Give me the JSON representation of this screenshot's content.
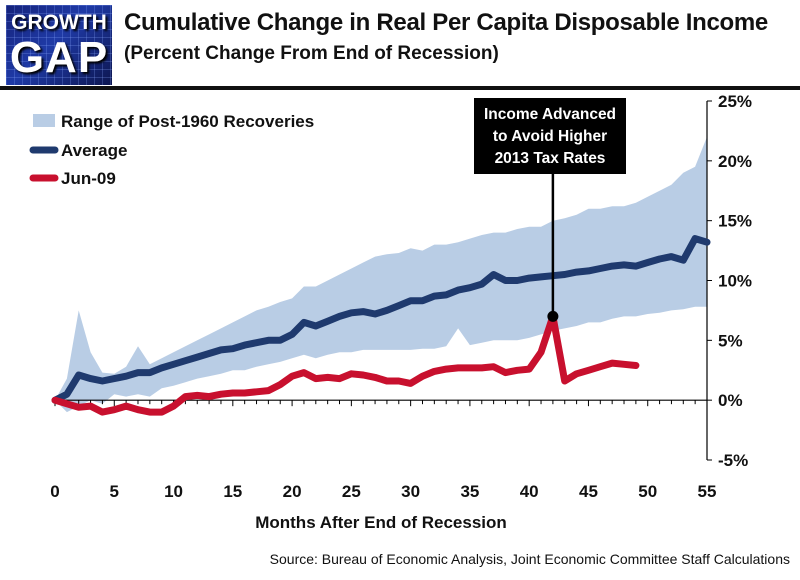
{
  "logo": {
    "line1": "GROWTH",
    "line2": "GAP"
  },
  "header": {
    "title": "Cumulative Change in Real Per Capita Disposable Income",
    "subtitle": "(Percent Change From End of Recession)"
  },
  "source": "Source:  Bureau of Economic Analysis, Joint Economic Committee Staff Calculations",
  "chart_data": {
    "type": "line",
    "title": "Cumulative Change in Real Per Capita Disposable Income",
    "subtitle": "(Percent Change From End of Recession)",
    "xlabel": "Months After End of Recession",
    "ylabel": "",
    "xlim": [
      0,
      55
    ],
    "ylim": [
      -5,
      25
    ],
    "xticks": [
      0,
      5,
      10,
      15,
      20,
      25,
      30,
      35,
      40,
      45,
      50,
      55
    ],
    "yticks": [
      -5,
      0,
      5,
      10,
      15,
      20,
      25
    ],
    "ytick_labels": [
      "-5%",
      "0%",
      "5%",
      "10%",
      "15%",
      "20%",
      "25%"
    ],
    "grid": false,
    "legend_position": "top-left",
    "legend": [
      "Range of Post-1960 Recoveries",
      "Average",
      "Jun-09"
    ],
    "annotation": {
      "text_lines": [
        "Income Advanced",
        "to Avoid Higher",
        "2013 Tax Rates"
      ],
      "x": 42,
      "y": 7
    },
    "range": {
      "name": "Range of Post-1960 Recoveries",
      "color": "#b9cde5",
      "x": [
        0,
        1,
        2,
        3,
        4,
        5,
        6,
        7,
        8,
        9,
        10,
        11,
        12,
        13,
        14,
        15,
        16,
        17,
        18,
        19,
        20,
        21,
        22,
        23,
        24,
        25,
        26,
        27,
        28,
        29,
        30,
        31,
        32,
        33,
        34,
        35,
        36,
        37,
        38,
        39,
        40,
        41,
        42,
        43,
        44,
        45,
        46,
        47,
        48,
        49,
        50,
        51,
        52,
        53,
        54,
        55
      ],
      "upper": [
        0,
        1.8,
        7.5,
        4.0,
        2.3,
        2.2,
        2.8,
        4.5,
        3.0,
        3.5,
        4.0,
        4.5,
        5.0,
        5.5,
        6.0,
        6.5,
        7.0,
        7.5,
        7.8,
        8.2,
        8.5,
        9.5,
        9.5,
        10.0,
        10.5,
        11.0,
        11.5,
        12.0,
        12.2,
        12.3,
        12.7,
        12.5,
        13.0,
        13.0,
        13.2,
        13.5,
        13.8,
        14.0,
        14.0,
        14.3,
        14.5,
        14.5,
        15.0,
        15.2,
        15.5,
        16.0,
        16.0,
        16.2,
        16.2,
        16.5,
        17.0,
        17.5,
        18.0,
        19.0,
        19.5,
        22.0
      ],
      "lower": [
        0,
        -1.0,
        -0.5,
        0,
        -0.3,
        0.5,
        0.3,
        0.5,
        0.3,
        1.0,
        1.2,
        1.5,
        1.8,
        2.0,
        2.2,
        2.5,
        2.5,
        2.8,
        3.0,
        3.2,
        3.5,
        3.8,
        3.5,
        3.8,
        4.0,
        4.0,
        4.2,
        4.2,
        4.2,
        4.2,
        4.2,
        4.3,
        4.3,
        4.5,
        6.0,
        4.6,
        4.8,
        5.0,
        5.0,
        5.0,
        5.2,
        5.5,
        5.8,
        6.0,
        6.2,
        6.5,
        6.5,
        6.8,
        7.0,
        7.0,
        7.2,
        7.3,
        7.5,
        7.6,
        7.8,
        7.8
      ]
    },
    "series": [
      {
        "name": "Average",
        "color": "#1f3a6e",
        "x": [
          0,
          1,
          2,
          3,
          4,
          5,
          6,
          7,
          8,
          9,
          10,
          11,
          12,
          13,
          14,
          15,
          16,
          17,
          18,
          19,
          20,
          21,
          22,
          23,
          24,
          25,
          26,
          27,
          28,
          29,
          30,
          31,
          32,
          33,
          34,
          35,
          36,
          37,
          38,
          39,
          40,
          41,
          42,
          43,
          44,
          45,
          46,
          47,
          48,
          49,
          50,
          51,
          52,
          53,
          54,
          55
        ],
        "values": [
          0,
          0.5,
          2.1,
          1.8,
          1.6,
          1.8,
          2.0,
          2.3,
          2.3,
          2.7,
          3.0,
          3.3,
          3.6,
          3.9,
          4.2,
          4.3,
          4.6,
          4.8,
          5.0,
          5.0,
          5.5,
          6.5,
          6.2,
          6.6,
          7.0,
          7.3,
          7.4,
          7.2,
          7.5,
          7.9,
          8.3,
          8.3,
          8.7,
          8.8,
          9.2,
          9.4,
          9.7,
          10.5,
          10.0,
          10.0,
          10.2,
          10.3,
          10.4,
          10.5,
          10.7,
          10.8,
          11.0,
          11.2,
          11.3,
          11.2,
          11.5,
          11.8,
          12.0,
          11.7,
          13.5,
          13.2
        ]
      },
      {
        "name": "Jun-09",
        "color": "#c8102e",
        "x": [
          0,
          1,
          2,
          3,
          4,
          5,
          6,
          7,
          8,
          9,
          10,
          11,
          12,
          13,
          14,
          15,
          16,
          17,
          18,
          19,
          20,
          21,
          22,
          23,
          24,
          25,
          26,
          27,
          28,
          29,
          30,
          31,
          32,
          33,
          34,
          35,
          36,
          37,
          38,
          39,
          40,
          41,
          42,
          43,
          44,
          45,
          46,
          47,
          48,
          49
        ],
        "values": [
          0,
          -0.3,
          -0.6,
          -0.5,
          -1.0,
          -0.8,
          -0.5,
          -0.8,
          -1.0,
          -1.0,
          -0.5,
          0.3,
          0.4,
          0.3,
          0.5,
          0.6,
          0.6,
          0.7,
          0.8,
          1.3,
          2.0,
          2.3,
          1.8,
          1.9,
          1.8,
          2.2,
          2.1,
          1.9,
          1.6,
          1.6,
          1.4,
          2.0,
          2.4,
          2.6,
          2.7,
          2.7,
          2.7,
          2.8,
          2.3,
          2.5,
          2.6,
          4.0,
          7.0,
          1.6,
          2.2,
          2.5,
          2.8,
          3.1,
          3.0,
          2.9
        ]
      }
    ]
  }
}
